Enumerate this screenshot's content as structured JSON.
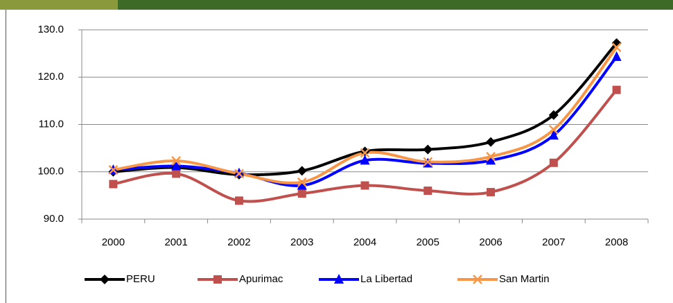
{
  "chart_data": {
    "type": "line",
    "categories": [
      "2000",
      "2001",
      "2002",
      "2003",
      "2004",
      "2005",
      "2006",
      "2007",
      "2008"
    ],
    "series": [
      {
        "name": "PERU",
        "color": "#000000",
        "marker": "diamond",
        "values": [
          100.0,
          100.9,
          99.4,
          100.2,
          104.3,
          104.7,
          106.3,
          112.0,
          127.2
        ]
      },
      {
        "name": "Apurimac",
        "color": "#c0504d",
        "marker": "square",
        "values": [
          97.4,
          99.6,
          93.9,
          95.4,
          97.1,
          96.0,
          95.7,
          101.9,
          117.3
        ]
      },
      {
        "name": "La Libertad",
        "color": "#0000ff",
        "marker": "triangle",
        "values": [
          100.4,
          101.2,
          99.7,
          97.1,
          102.4,
          101.8,
          102.4,
          107.7,
          124.3
        ]
      },
      {
        "name": "San Martin",
        "color": "#f79646",
        "marker": "x",
        "values": [
          100.4,
          102.3,
          99.6,
          97.8,
          104.0,
          102.1,
          103.2,
          108.9,
          126.3
        ]
      }
    ],
    "ylim": [
      90,
      130
    ],
    "yticks": [
      {
        "value": 90,
        "label": "90.0"
      },
      {
        "value": 100,
        "label": "100.0"
      },
      {
        "value": 110,
        "label": "110.0"
      },
      {
        "value": 120,
        "label": "120.0"
      },
      {
        "value": 130,
        "label": "130.0"
      }
    ],
    "grid": true,
    "legend": "bottom"
  }
}
